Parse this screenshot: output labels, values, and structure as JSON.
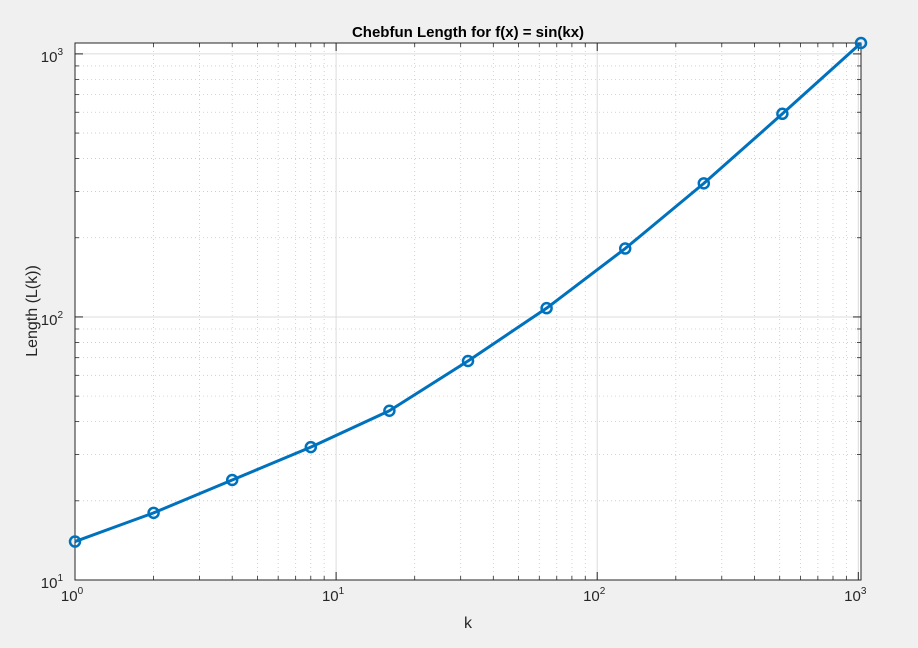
{
  "chart_data": {
    "type": "line",
    "title": "Chebfun Length for f(x) = sin(kx)",
    "xlabel": "k",
    "ylabel": "Length (L(k))",
    "xscale": "log",
    "yscale": "log",
    "xlim": [
      1,
      1024
    ],
    "ylim": [
      10,
      1100
    ],
    "grid": true,
    "minor_grid": true,
    "x_ticks": [
      {
        "base": "10",
        "exp": "0",
        "value": 1
      },
      {
        "base": "10",
        "exp": "1",
        "value": 10
      },
      {
        "base": "10",
        "exp": "2",
        "value": 100
      },
      {
        "base": "10",
        "exp": "3",
        "value": 1000
      }
    ],
    "y_ticks": [
      {
        "base": "10",
        "exp": "1",
        "value": 10
      },
      {
        "base": "10",
        "exp": "2",
        "value": 100
      },
      {
        "base": "10",
        "exp": "3",
        "value": 1000
      }
    ],
    "series": [
      {
        "color": "#0072BD",
        "marker": "circle",
        "x": [
          1,
          2,
          4,
          8,
          16,
          32,
          64,
          128,
          256,
          512,
          1024
        ],
        "y": [
          14,
          18,
          24,
          32,
          44,
          68,
          108,
          182,
          322,
          592,
          1100
        ]
      }
    ]
  }
}
